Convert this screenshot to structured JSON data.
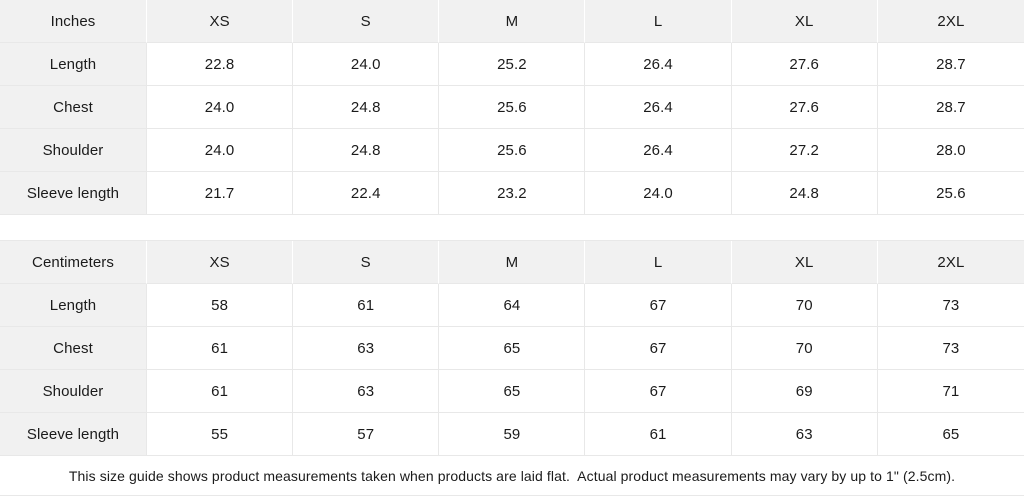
{
  "chart_data": [
    {
      "type": "table",
      "title": "Inches",
      "columns": [
        "Inches",
        "XS",
        "S",
        "M",
        "L",
        "XL",
        "2XL"
      ],
      "rows": [
        [
          "Length",
          "22.8",
          "24.0",
          "25.2",
          "26.4",
          "27.6",
          "28.7"
        ],
        [
          "Chest",
          "24.0",
          "24.8",
          "25.6",
          "26.4",
          "27.6",
          "28.7"
        ],
        [
          "Shoulder",
          "24.0",
          "24.8",
          "25.6",
          "26.4",
          "27.2",
          "28.0"
        ],
        [
          "Sleeve length",
          "21.7",
          "22.4",
          "23.2",
          "24.0",
          "24.8",
          "25.6"
        ]
      ]
    },
    {
      "type": "table",
      "title": "Centimeters",
      "columns": [
        "Centimeters",
        "XS",
        "S",
        "M",
        "L",
        "XL",
        "2XL"
      ],
      "rows": [
        [
          "Length",
          "58",
          "61",
          "64",
          "67",
          "70",
          "73"
        ],
        [
          "Chest",
          "61",
          "63",
          "65",
          "67",
          "70",
          "73"
        ],
        [
          "Shoulder",
          "61",
          "63",
          "65",
          "67",
          "69",
          "71"
        ],
        [
          "Sleeve length",
          "55",
          "57",
          "59",
          "61",
          "63",
          "65"
        ]
      ]
    }
  ],
  "footer": {
    "note": "This size guide shows product measurements taken when products are laid flat.  Actual product measurements may vary by up to 1\" (2.5cm)."
  },
  "colors": {
    "header_bg": "#f1f1f1",
    "body_bg": "#ffffff",
    "grid_border": "#e8e8e8",
    "text": "#1b1b1b"
  }
}
